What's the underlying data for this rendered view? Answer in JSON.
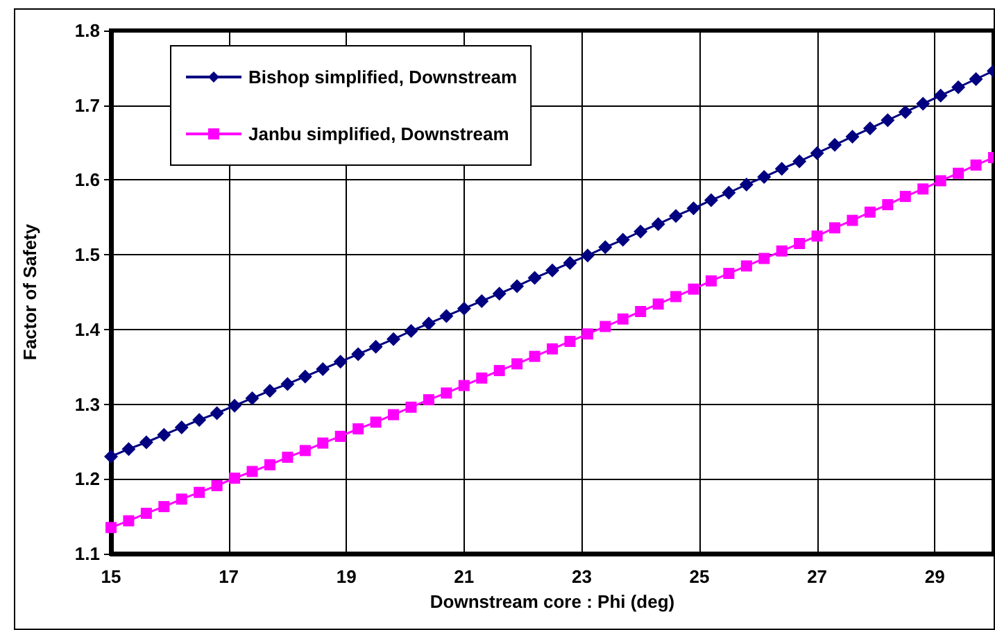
{
  "chart_data": {
    "type": "line",
    "xlabel": "Downstream core : Phi (deg)",
    "ylabel": "Factor of Safety",
    "x": [
      15,
      15.3,
      15.6,
      15.9,
      16.2,
      16.5,
      16.8,
      17.1,
      17.4,
      17.7,
      18,
      18.3,
      18.6,
      18.9,
      19.2,
      19.5,
      19.8,
      20.1,
      20.4,
      20.7,
      21,
      21.3,
      21.6,
      21.9,
      22.2,
      22.5,
      22.8,
      23.1,
      23.4,
      23.7,
      24,
      24.3,
      24.6,
      24.9,
      25.2,
      25.5,
      25.8,
      26.1,
      26.4,
      26.7,
      27,
      27.3,
      27.6,
      27.9,
      28.2,
      28.5,
      28.8,
      29.1,
      29.4,
      29.7,
      30
    ],
    "series": [
      {
        "name": "Bishop simplified, Downstream",
        "color": "#000080",
        "marker": "diamond",
        "values": [
          1.23,
          1.24,
          1.249,
          1.259,
          1.269,
          1.279,
          1.288,
          1.298,
          1.308,
          1.318,
          1.327,
          1.337,
          1.347,
          1.357,
          1.367,
          1.377,
          1.387,
          1.398,
          1.408,
          1.418,
          1.428,
          1.438,
          1.448,
          1.458,
          1.469,
          1.479,
          1.489,
          1.499,
          1.51,
          1.52,
          1.531,
          1.541,
          1.552,
          1.562,
          1.573,
          1.583,
          1.594,
          1.604,
          1.615,
          1.625,
          1.636,
          1.647,
          1.658,
          1.669,
          1.68,
          1.691,
          1.702,
          1.713,
          1.724,
          1.735,
          1.746
        ]
      },
      {
        "name": "Janbu simplified, Downstream",
        "color": "#ff00ff",
        "marker": "square",
        "values": [
          1.135,
          1.144,
          1.154,
          1.163,
          1.173,
          1.182,
          1.191,
          1.201,
          1.21,
          1.219,
          1.229,
          1.238,
          1.248,
          1.257,
          1.267,
          1.276,
          1.286,
          1.296,
          1.306,
          1.315,
          1.325,
          1.335,
          1.345,
          1.354,
          1.364,
          1.374,
          1.384,
          1.394,
          1.404,
          1.414,
          1.424,
          1.434,
          1.444,
          1.454,
          1.465,
          1.475,
          1.485,
          1.495,
          1.505,
          1.515,
          1.525,
          1.536,
          1.546,
          1.557,
          1.567,
          1.578,
          1.588,
          1.599,
          1.609,
          1.62,
          1.63
        ]
      }
    ],
    "xlim": [
      15,
      30
    ],
    "xticks": [
      15,
      17,
      19,
      21,
      23,
      25,
      27,
      29
    ],
    "ylim": [
      1.1,
      1.8
    ],
    "yticks": [
      1.1,
      1.2,
      1.3,
      1.4,
      1.5,
      1.6,
      1.7,
      1.8
    ],
    "grid": true,
    "legend": "top left",
    "line_style": "solid"
  }
}
